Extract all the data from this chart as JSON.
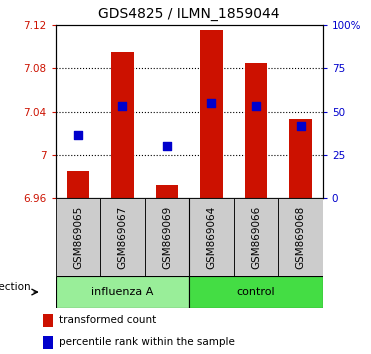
{
  "title": "GDS4825 / ILMN_1859044",
  "categories": [
    "GSM869065",
    "GSM869067",
    "GSM869069",
    "GSM869064",
    "GSM869066",
    "GSM869068"
  ],
  "bar_tops": [
    6.985,
    7.095,
    6.972,
    7.115,
    7.085,
    7.033
  ],
  "blue_dots": [
    7.018,
    7.045,
    7.008,
    7.048,
    7.045,
    7.027
  ],
  "bar_bottom": 6.96,
  "ylim_left": [
    6.96,
    7.12
  ],
  "ylim_right": [
    0,
    100
  ],
  "yticks_left": [
    6.96,
    7.0,
    7.04,
    7.08,
    7.12
  ],
  "yticks_right": [
    0,
    25,
    50,
    75,
    100
  ],
  "ytick_labels_left": [
    "6.96",
    "7",
    "7.04",
    "7.08",
    "7.12"
  ],
  "ytick_labels_right": [
    "0",
    "25",
    "50",
    "75",
    "100%"
  ],
  "bar_color": "#cc1100",
  "dot_color": "#0000cc",
  "group1_label": "influenza A",
  "group2_label": "control",
  "group1_color": "#99ee99",
  "group2_color": "#44dd44",
  "sample_box_color": "#cccccc",
  "infection_label": "infection",
  "legend_red": "transformed count",
  "legend_blue": "percentile rank within the sample",
  "bar_width": 0.5,
  "dot_size": 30,
  "n_group1": 3,
  "n_group2": 3,
  "grid_color": "#000000",
  "grid_linestyle": "dotted",
  "grid_linewidth": 0.8,
  "background_color": "#ffffff",
  "tick_label_fontsize": 7.5,
  "title_fontsize": 10
}
